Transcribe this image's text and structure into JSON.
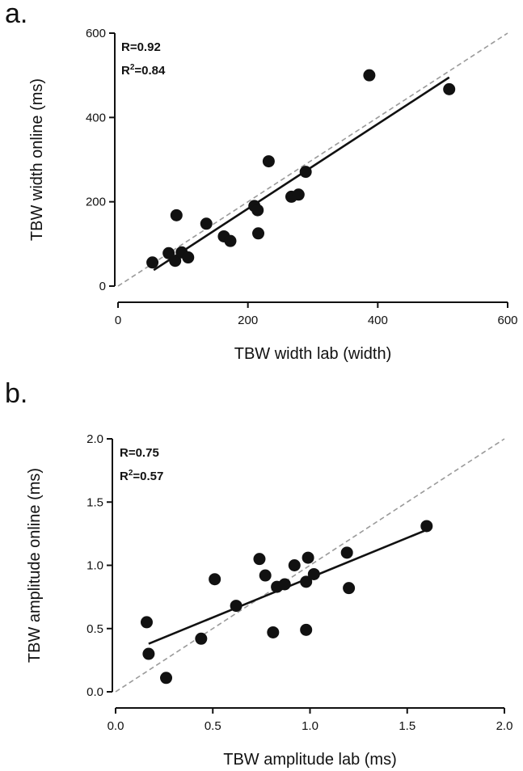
{
  "chart_data": [
    {
      "type": "scatter",
      "panel_label": "a.",
      "xlabel": "TBW width lab (width)",
      "ylabel": "TBW width online (ms)",
      "xlim": [
        0,
        600
      ],
      "ylim": [
        0,
        600
      ],
      "xticks": [
        0,
        200,
        400,
        600
      ],
      "yticks": [
        0,
        200,
        400,
        600
      ],
      "xtick_labels": [
        "0",
        "200",
        "400",
        "600"
      ],
      "ytick_labels": [
        "0",
        "200",
        "400",
        "600"
      ],
      "annotations": [
        {
          "base": "R=0.92"
        },
        {
          "base": "R",
          "sup": "2",
          "rest": "=0.84"
        }
      ],
      "identity_line": true,
      "fit_line": {
        "x": [
          55,
          510
        ],
        "y": [
          38,
          495
        ]
      },
      "points": [
        {
          "x": 53,
          "y": 56
        },
        {
          "x": 78,
          "y": 78
        },
        {
          "x": 88,
          "y": 60
        },
        {
          "x": 90,
          "y": 168
        },
        {
          "x": 98,
          "y": 80
        },
        {
          "x": 108,
          "y": 68
        },
        {
          "x": 136,
          "y": 148
        },
        {
          "x": 163,
          "y": 118
        },
        {
          "x": 173,
          "y": 107
        },
        {
          "x": 210,
          "y": 190
        },
        {
          "x": 215,
          "y": 180
        },
        {
          "x": 216,
          "y": 125
        },
        {
          "x": 232,
          "y": 296
        },
        {
          "x": 267,
          "y": 212
        },
        {
          "x": 278,
          "y": 217
        },
        {
          "x": 289,
          "y": 271
        },
        {
          "x": 387,
          "y": 500
        },
        {
          "x": 510,
          "y": 467
        }
      ]
    },
    {
      "type": "scatter",
      "panel_label": "b.",
      "xlabel": "TBW amplitude lab (ms)",
      "ylabel": "TBW amplitude online (ms)",
      "xlim": [
        0,
        2.0
      ],
      "ylim": [
        0,
        2.0
      ],
      "xticks": [
        0,
        0.5,
        1.0,
        1.5,
        2.0
      ],
      "yticks": [
        0,
        0.5,
        1.0,
        1.5,
        2.0
      ],
      "xtick_labels": [
        "0.0",
        "0.5",
        "1.0",
        "1.5",
        "2.0"
      ],
      "ytick_labels": [
        "0.0",
        "0.5",
        "1.0",
        "1.5",
        "2.0"
      ],
      "annotations": [
        {
          "base": "R=0.75"
        },
        {
          "base": "R",
          "sup": "2",
          "rest": "=0.57"
        }
      ],
      "identity_line": true,
      "fit_line": {
        "x": [
          0.17,
          1.6
        ],
        "y": [
          0.38,
          1.28
        ]
      },
      "points": [
        {
          "x": 0.16,
          "y": 0.55
        },
        {
          "x": 0.17,
          "y": 0.3
        },
        {
          "x": 0.26,
          "y": 0.11
        },
        {
          "x": 0.44,
          "y": 0.42
        },
        {
          "x": 0.51,
          "y": 0.89
        },
        {
          "x": 0.62,
          "y": 0.68
        },
        {
          "x": 0.74,
          "y": 1.05
        },
        {
          "x": 0.77,
          "y": 0.92
        },
        {
          "x": 0.81,
          "y": 0.47
        },
        {
          "x": 0.83,
          "y": 0.83
        },
        {
          "x": 0.87,
          "y": 0.85
        },
        {
          "x": 0.92,
          "y": 1.0
        },
        {
          "x": 0.98,
          "y": 0.49
        },
        {
          "x": 0.98,
          "y": 0.87
        },
        {
          "x": 0.99,
          "y": 1.06
        },
        {
          "x": 1.02,
          "y": 0.93
        },
        {
          "x": 1.19,
          "y": 1.1
        },
        {
          "x": 1.2,
          "y": 0.82
        },
        {
          "x": 1.6,
          "y": 1.31
        }
      ]
    }
  ]
}
